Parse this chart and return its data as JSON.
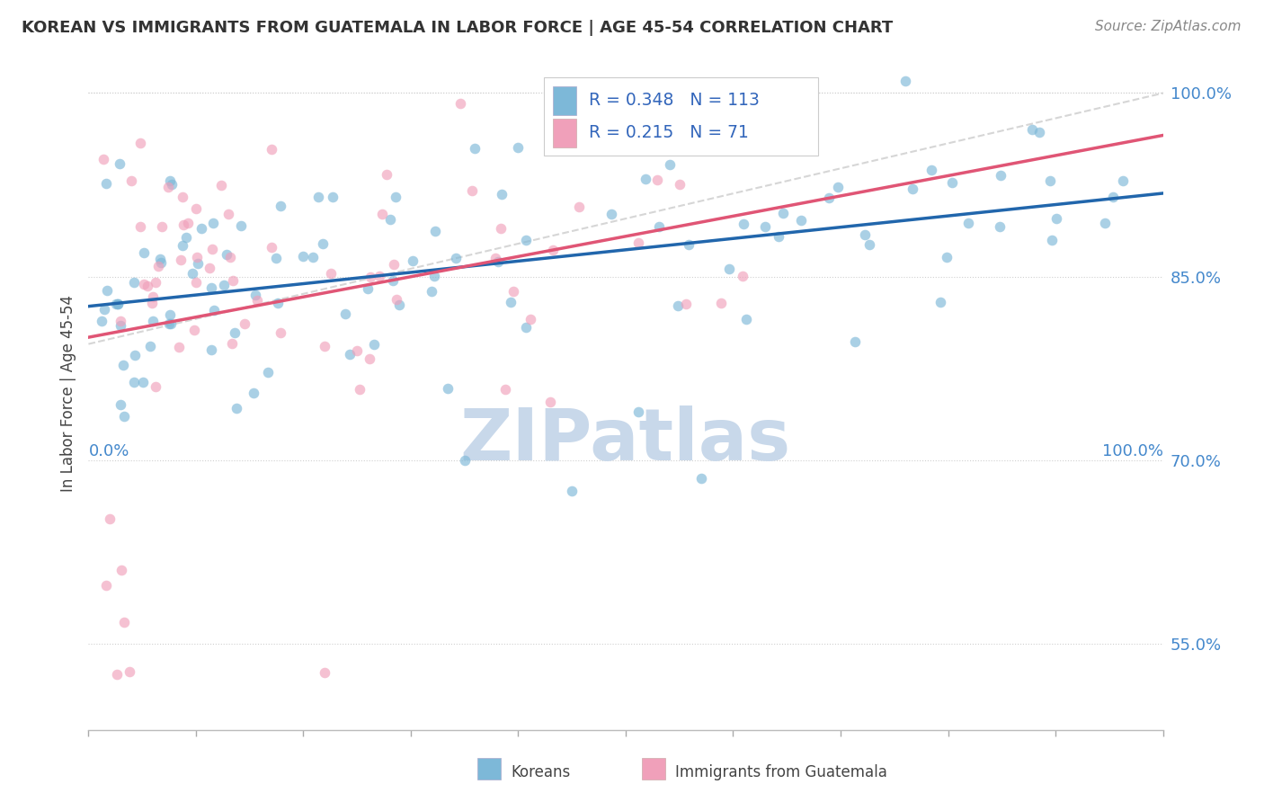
{
  "title": "KOREAN VS IMMIGRANTS FROM GUATEMALA IN LABOR FORCE | AGE 45-54 CORRELATION CHART",
  "source": "Source: ZipAtlas.com",
  "ylabel": "In Labor Force | Age 45-54",
  "right_yticks": [
    55.0,
    70.0,
    85.0,
    100.0
  ],
  "legend_korean": "Koreans",
  "legend_guatemala": "Immigrants from Guatemala",
  "R_korean": 0.348,
  "N_korean": 113,
  "R_guatemala": 0.215,
  "N_guatemala": 71,
  "blue_scatter_color": "#7db8d8",
  "pink_scatter_color": "#f0a0ba",
  "blue_line_color": "#2166ac",
  "pink_line_color": "#e05575",
  "watermark_color": "#c8d8ea",
  "dot_size": 70,
  "dot_alpha": 0.65,
  "xlim": [
    0.0,
    1.0
  ],
  "ylim": [
    0.48,
    1.03
  ]
}
